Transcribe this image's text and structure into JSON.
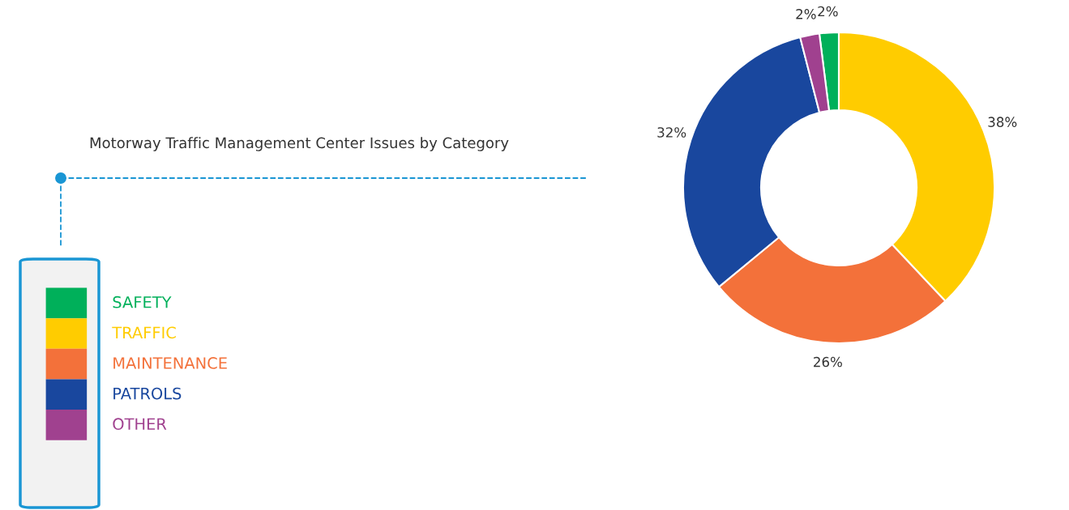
{
  "chart_data": {
    "type": "donut",
    "title": "Motorway Traffic Management Center Issues by Category",
    "categories": [
      "SAFETY",
      "TRAFFIC",
      "MAINTENANCE",
      "PATROLS",
      "OTHER"
    ],
    "values": [
      2,
      38,
      26,
      32,
      2
    ],
    "colors": [
      "#00b05a",
      "#ffcc00",
      "#f3713a",
      "#19479e",
      "#a0418f"
    ],
    "value_labels": [
      "2%",
      "38%",
      "26%",
      "32%",
      "2%"
    ],
    "legend": "left"
  }
}
